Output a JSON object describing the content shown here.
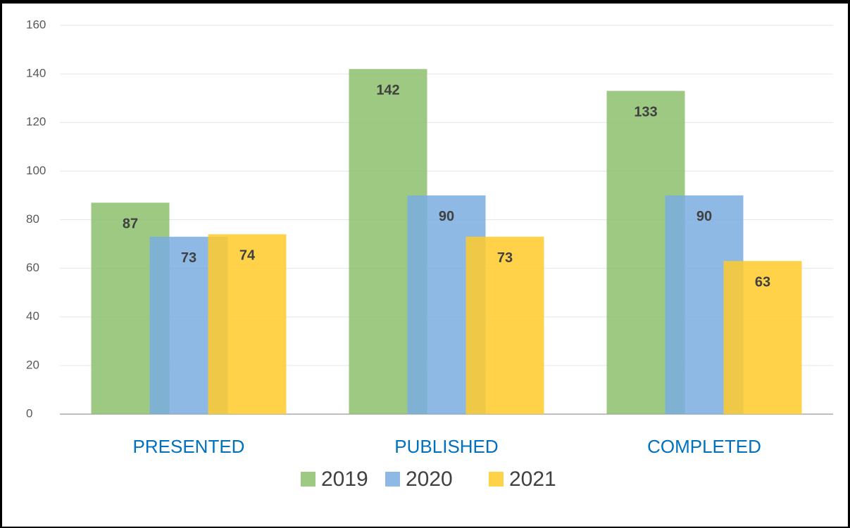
{
  "chart_data": {
    "type": "bar",
    "categories": [
      "PRESENTED",
      "PUBLISHED",
      "COMPLETED"
    ],
    "series": [
      {
        "name": "2019",
        "color": "#8cc06c",
        "values": [
          87,
          142,
          133
        ]
      },
      {
        "name": "2020",
        "color": "#7aade0",
        "values": [
          73,
          90,
          90
        ]
      },
      {
        "name": "2021",
        "color": "#ffca2a",
        "values": [
          74,
          73,
          63
        ]
      }
    ],
    "ylim": [
      0,
      160
    ],
    "yticks": [
      0,
      20,
      40,
      60,
      80,
      100,
      120,
      140,
      160
    ],
    "grid": true,
    "legend": "bottom"
  }
}
